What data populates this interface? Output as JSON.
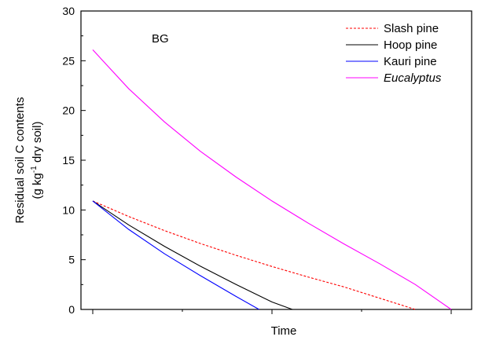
{
  "chart_data": {
    "type": "line",
    "panel_label": "BG",
    "xlabel": "Time",
    "ylabel_line1": "Residual soil C contents",
    "ylabel_line2_a": "(g kg",
    "ylabel_line2_sup": "-1",
    "ylabel_line2_b": " dry soil)",
    "xlim": [
      0,
      1.15
    ],
    "ylim": [
      0,
      30
    ],
    "x_ticks_labeled": false,
    "y_ticks": [
      0,
      5,
      10,
      15,
      20,
      25,
      30
    ],
    "y_tick_labels": [
      "0",
      "5",
      "10",
      "15",
      "20",
      "25",
      "30"
    ],
    "legend_position": "top-right",
    "series": [
      {
        "name": "Slash pine",
        "italic": false,
        "color": "#ff0000",
        "dash": "dashed",
        "x": [
          0.0,
          0.1,
          0.2,
          0.3,
          0.4,
          0.5,
          0.6,
          0.7,
          0.8,
          0.9
        ],
        "y": [
          10.9,
          9.35,
          7.93,
          6.63,
          5.44,
          4.32,
          3.27,
          2.27,
          1.14,
          0.0
        ]
      },
      {
        "name": "Hoop pine",
        "italic": false,
        "color": "#000000",
        "dash": "solid",
        "x": [
          0.0,
          0.1,
          0.2,
          0.3,
          0.4,
          0.5,
          0.557
        ],
        "y": [
          10.9,
          8.5,
          6.35,
          4.35,
          2.5,
          0.75,
          0.0
        ]
      },
      {
        "name": "Kauri pine",
        "italic": false,
        "color": "#0000ff",
        "dash": "solid",
        "x": [
          0.0,
          0.1,
          0.2,
          0.3,
          0.4,
          0.464
        ],
        "y": [
          10.9,
          8.05,
          5.6,
          3.4,
          1.3,
          0.0
        ]
      },
      {
        "name": "Eucalyptus",
        "italic": true,
        "color": "#ff00ff",
        "dash": "solid",
        "x": [
          0.0,
          0.1,
          0.2,
          0.3,
          0.4,
          0.5,
          0.6,
          0.7,
          0.8,
          0.9,
          1.0
        ],
        "y": [
          26.1,
          22.2,
          18.85,
          15.9,
          13.3,
          10.9,
          8.7,
          6.6,
          4.6,
          2.5,
          0.0
        ]
      }
    ]
  }
}
